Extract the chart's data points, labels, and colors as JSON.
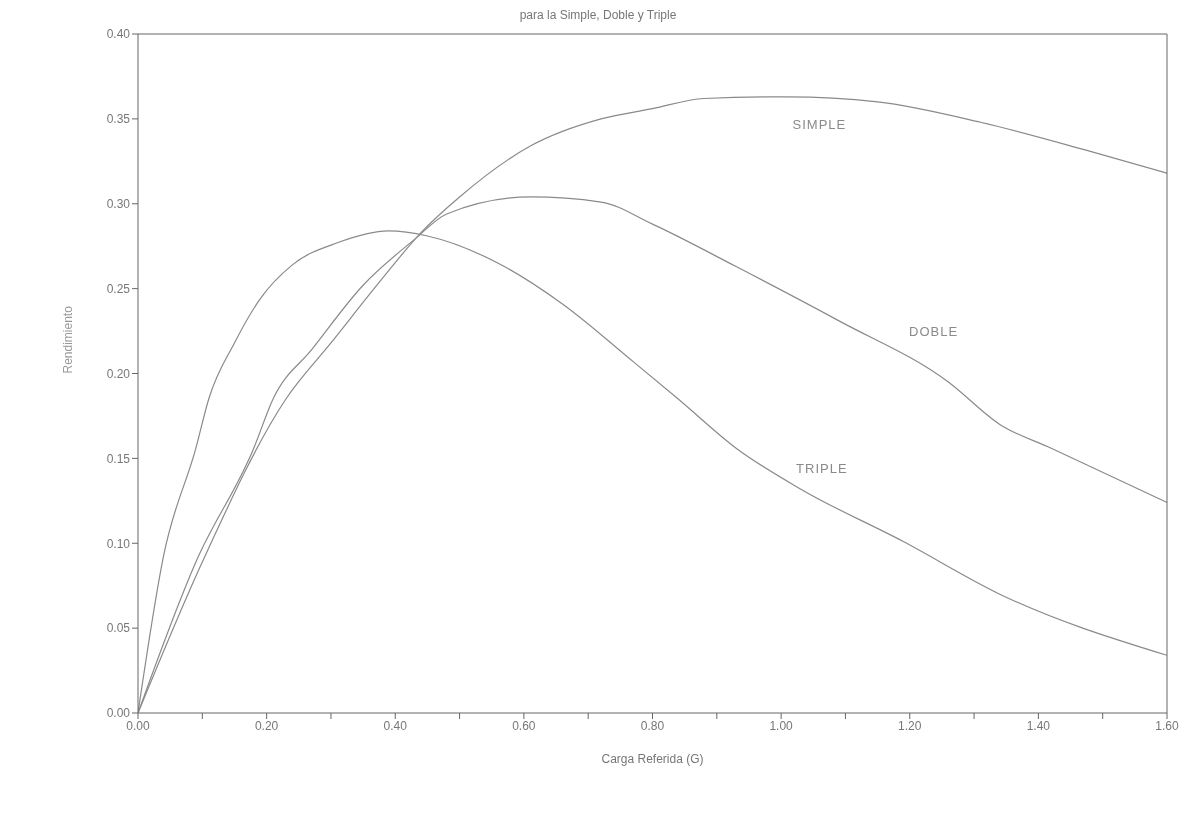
{
  "chart_data": {
    "type": "line",
    "title": "para la Simple, Doble y Triple",
    "xlabel": "Carga Referida (G)",
    "ylabel": "Rendimiento",
    "grid": false,
    "legend": false,
    "marker": "none",
    "line_style": "solid",
    "xlim": [
      0,
      1.6
    ],
    "ylim": [
      0,
      0.4
    ],
    "xticks": [
      {
        "value": 0,
        "label": "0.00"
      },
      {
        "value": 0.1,
        "label": null
      },
      {
        "value": 0.2,
        "label": "0.20"
      },
      {
        "value": 0.3,
        "label": null
      },
      {
        "value": 0.4,
        "label": "0.40"
      },
      {
        "value": 0.5,
        "label": null
      },
      {
        "value": 0.6,
        "label": "0.60"
      },
      {
        "value": 0.7,
        "label": null
      },
      {
        "value": 0.8,
        "label": "0.80"
      },
      {
        "value": 0.9,
        "label": null
      },
      {
        "value": 1.0,
        "label": "1.00"
      },
      {
        "value": 1.1,
        "label": null
      },
      {
        "value": 1.2,
        "label": "1.20"
      },
      {
        "value": 1.3,
        "label": null
      },
      {
        "value": 1.4,
        "label": "1.40"
      },
      {
        "value": 1.5,
        "label": null
      },
      {
        "value": 1.6,
        "label": "1.60"
      }
    ],
    "yticks": [
      {
        "value": 0,
        "label": "0.00"
      },
      {
        "value": 0.05,
        "label": "0.05"
      },
      {
        "value": 0.1,
        "label": "0.10"
      },
      {
        "value": 0.15,
        "label": "0.15"
      },
      {
        "value": 0.2,
        "label": "0.20"
      },
      {
        "value": 0.25,
        "label": "0.25"
      },
      {
        "value": 0.3,
        "label": "0.30"
      },
      {
        "value": 0.35,
        "label": "0.35"
      },
      {
        "value": 0.4,
        "label": "0.40"
      }
    ],
    "series": [
      {
        "name": "SIMPLE",
        "color": "#8a8a8a",
        "x": [
          0,
          0.1,
          0.23,
          0.3,
          0.38,
          0.44,
          0.5,
          0.61,
          0.72,
          0.8,
          0.88,
          1.01,
          1.15,
          1.31,
          1.47,
          1.6
        ],
        "values": [
          0,
          0.089,
          0.185,
          0.218,
          0.256,
          0.283,
          0.304,
          0.334,
          0.35,
          0.356,
          0.362,
          0.363,
          0.36,
          0.348,
          0.332,
          0.318
        ]
      },
      {
        "name": "DOBLE",
        "color": "#8a8a8a",
        "x": [
          0,
          0.09,
          0.18,
          0.21,
          0.27,
          0.35,
          0.43,
          0.48,
          0.61,
          0.72,
          0.8,
          0.93,
          1.09,
          1.26,
          1.34,
          1.42,
          1.6
        ],
        "values": [
          0,
          0.089,
          0.156,
          0.185,
          0.214,
          0.252,
          0.279,
          0.294,
          0.304,
          0.301,
          0.288,
          0.263,
          0.231,
          0.195,
          0.17,
          0.156,
          0.124
        ]
      },
      {
        "name": "TRIPLE",
        "color": "#8a8a8a",
        "x": [
          0,
          0.04,
          0.09,
          0.11,
          0.15,
          0.19,
          0.24,
          0.31,
          0.39,
          0.45,
          0.56,
          0.66,
          0.77,
          0.84,
          0.93,
          1.03,
          1.19,
          1.34,
          1.6
        ],
        "values": [
          0,
          0.093,
          0.156,
          0.185,
          0.218,
          0.244,
          0.264,
          0.277,
          0.284,
          0.281,
          0.265,
          0.241,
          0.207,
          0.185,
          0.156,
          0.132,
          0.101,
          0.07,
          0.034
        ]
      }
    ]
  }
}
